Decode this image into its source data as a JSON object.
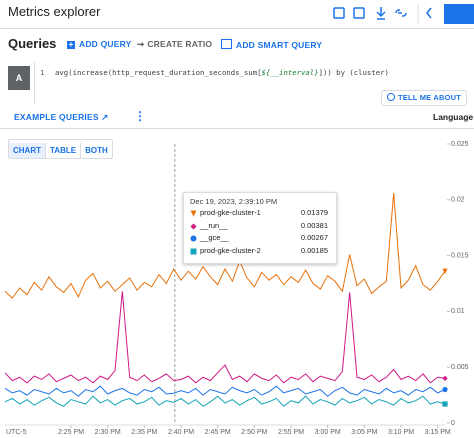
{
  "header": {
    "title": "Metrics explorer"
  },
  "queries": {
    "title": "Queries",
    "buttons": [
      "ADD QUERY",
      "CREATE RATIO",
      "ADD SMART QUERY"
    ]
  },
  "editor": {
    "label": "A",
    "line": "1",
    "code": [
      "avg(increase(http_request_duration_seconds_sum[",
      "${__interval}",
      "])) by (cluster)"
    ],
    "help": "TELL ME ABOUT",
    "examples": "EXAMPLE QUERIES",
    "language": "Language:"
  },
  "tabs": [
    "CHART",
    "TABLE",
    "BOTH"
  ],
  "chart_data": {
    "type": "line",
    "timezone": "UTC-5",
    "x": [
      "2:16 PM",
      "2:17 PM",
      "2:18 PM",
      "2:19 PM",
      "2:20 PM",
      "2:21 PM",
      "2:22 PM",
      "2:23 PM",
      "2:24 PM",
      "2:25 PM",
      "2:26 PM",
      "2:27 PM",
      "2:28 PM",
      "2:29 PM",
      "2:30 PM",
      "2:31 PM",
      "2:32 PM",
      "2:33 PM",
      "2:34 PM",
      "2:35 PM",
      "2:36 PM",
      "2:37 PM",
      "2:38 PM",
      "2:39 PM",
      "2:40 PM",
      "2:41 PM",
      "2:42 PM",
      "2:43 PM",
      "2:44 PM",
      "2:45 PM",
      "2:46 PM",
      "2:47 PM",
      "2:48 PM",
      "2:49 PM",
      "2:50 PM",
      "2:51 PM",
      "2:52 PM",
      "2:53 PM",
      "2:54 PM",
      "2:55 PM",
      "2:56 PM",
      "2:57 PM",
      "2:58 PM",
      "2:59 PM",
      "3:00 PM",
      "3:01 PM",
      "3:02 PM",
      "3:03 PM",
      "3:04 PM",
      "3:05 PM",
      "3:06 PM",
      "3:07 PM",
      "3:08 PM",
      "3:09 PM",
      "3:10 PM",
      "3:11 PM",
      "3:12 PM",
      "3:13 PM",
      "3:14 PM",
      "3:15 PM",
      "3:16 PM"
    ],
    "xlim": [
      "2:16 PM",
      "3:16 PM"
    ],
    "xticks": [
      "2:25 PM",
      "2:30 PM",
      "2:35 PM",
      "2:40 PM",
      "2:45 PM",
      "2:50 PM",
      "2:55 PM",
      "3:00 PM",
      "3:05 PM",
      "3:10 PM",
      "3:15 PM"
    ],
    "ylim": [
      0,
      0.025
    ],
    "yticks": [
      0,
      0.005,
      0.01,
      0.015,
      0.02,
      0.025
    ],
    "grid": false,
    "series": [
      {
        "name": "prod-gke-cluster-1",
        "color": "#e8710a",
        "marker": "triangle-down",
        "values": [
          0.0118,
          0.0112,
          0.0121,
          0.0115,
          0.0126,
          0.0119,
          0.0131,
          0.0122,
          0.0117,
          0.0125,
          0.0113,
          0.0128,
          0.0134,
          0.0121,
          0.0127,
          0.0118,
          0.0124,
          0.013,
          0.0119,
          0.0126,
          0.0122,
          0.0133,
          0.0125,
          0.01379,
          0.0128,
          0.0136,
          0.0129,
          0.014,
          0.0131,
          0.0124,
          0.0138,
          0.0127,
          0.0145,
          0.013,
          0.0122,
          0.0135,
          0.0128,
          0.0133,
          0.0124,
          0.0131,
          0.0126,
          0.0137,
          0.0125,
          0.012,
          0.0132,
          0.0127,
          0.0118,
          0.0151,
          0.0123,
          0.0129,
          0.0116,
          0.0122,
          0.0127,
          0.0206,
          0.0121,
          0.0128,
          0.0141,
          0.0124,
          0.0119,
          0.0127,
          0.0136
        ]
      },
      {
        "name": "__run__",
        "color": "#d01884",
        "marker": "diamond",
        "values": [
          0.0045,
          0.0038,
          0.0041,
          0.0036,
          0.0042,
          0.0039,
          0.0044,
          0.0037,
          0.004,
          0.0043,
          0.0038,
          0.0041,
          0.0036,
          0.0042,
          0.0039,
          0.0047,
          0.0118,
          0.0041,
          0.0038,
          0.0043,
          0.0037,
          0.004,
          0.0044,
          0.00381,
          0.0039,
          0.0042,
          0.0036,
          0.0041,
          0.0038,
          0.0045,
          0.0052,
          0.0039,
          0.0042,
          0.0037,
          0.0044,
          0.004,
          0.0038,
          0.0043,
          0.0036,
          0.0041,
          0.0039,
          0.0044,
          0.0037,
          0.0042,
          0.004,
          0.0038,
          0.0046,
          0.0117,
          0.0041,
          0.0039,
          0.0043,
          0.0037,
          0.0041,
          0.0048,
          0.0039,
          0.0042,
          0.0038,
          0.0044,
          0.0036,
          0.0041,
          0.004
        ]
      },
      {
        "name": "__gce__",
        "color": "#1a73e8",
        "marker": "circle",
        "values": [
          0.0031,
          0.0027,
          0.0029,
          0.0025,
          0.003,
          0.0028,
          0.0026,
          0.0031,
          0.0027,
          0.0029,
          0.0024,
          0.003,
          0.0028,
          0.0033,
          0.0026,
          0.0029,
          0.0031,
          0.0027,
          0.0025,
          0.003,
          0.0028,
          0.0032,
          0.0026,
          0.00267,
          0.0029,
          0.0027,
          0.0031,
          0.0025,
          0.003,
          0.0028,
          0.0026,
          0.0032,
          0.0029,
          0.0027,
          0.003,
          0.0025,
          0.0028,
          0.0033,
          0.0027,
          0.0029,
          0.0031,
          0.0026,
          0.0028,
          0.003,
          0.0024,
          0.0029,
          0.0032,
          0.0027,
          0.0025,
          0.003,
          0.0028,
          0.0026,
          0.0031,
          0.0027,
          0.0029,
          0.0025,
          0.003,
          0.0028,
          0.0032,
          0.0027,
          0.003
        ]
      },
      {
        "name": "prod-gke-cluster-2",
        "color": "#12a4b8",
        "marker": "square",
        "values": [
          0.0019,
          0.0022,
          0.0017,
          0.0021,
          0.0016,
          0.002,
          0.0023,
          0.0018,
          0.0015,
          0.0021,
          0.0019,
          0.0017,
          0.0024,
          0.0018,
          0.0021,
          0.0016,
          0.002,
          0.0022,
          0.0017,
          0.0019,
          0.0023,
          0.0016,
          0.002,
          0.00185,
          0.0022,
          0.0017,
          0.0021,
          0.0015,
          0.0019,
          0.0024,
          0.0018,
          0.0021,
          0.0016,
          0.002,
          0.0023,
          0.0017,
          0.0019,
          0.0022,
          0.0015,
          0.002,
          0.0018,
          0.0024,
          0.0017,
          0.0021,
          0.0019,
          0.0016,
          0.0022,
          0.0018,
          0.002,
          0.0023,
          0.0017,
          0.0021,
          0.0019,
          0.0016,
          0.0022,
          0.0018,
          0.002,
          0.0024,
          0.0017,
          0.0019,
          0.0017
        ]
      }
    ],
    "tooltip": {
      "time": "Dec 19, 2023, 2:39:10 PM",
      "values": [
        0.01379,
        0.00381,
        0.00267,
        0.00185
      ]
    }
  }
}
